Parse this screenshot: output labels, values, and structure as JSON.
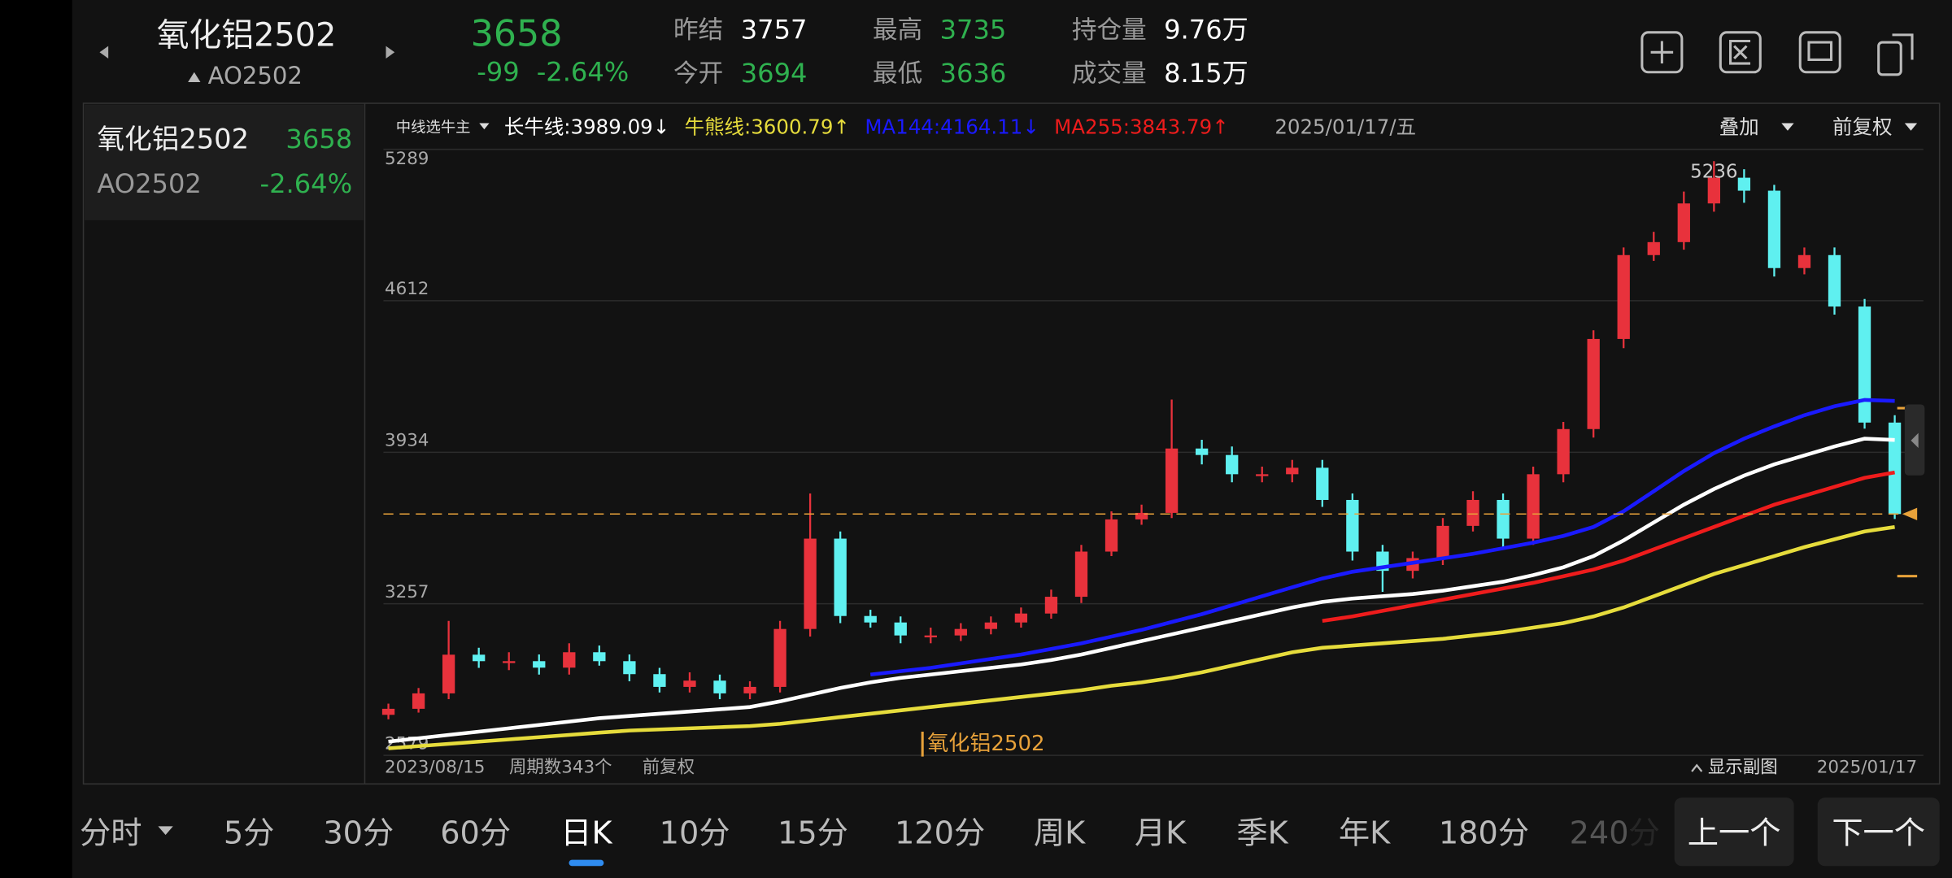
{
  "header": {
    "name": "氧化铝2502",
    "code": "AO2502",
    "price": "3658",
    "change": "-99",
    "change_pct": "-2.64%",
    "stats": [
      {
        "label": "昨结",
        "value": "3757",
        "color": "#ffffff"
      },
      {
        "label": "今开",
        "value": "3694",
        "color": "#2fb14f"
      },
      {
        "label": "最高",
        "value": "3735",
        "color": "#2fb14f"
      },
      {
        "label": "最低",
        "value": "3636",
        "color": "#2fb14f"
      },
      {
        "label": "持仓量",
        "value": "9.76万",
        "color": "#ffffff"
      },
      {
        "label": "成交量",
        "value": "8.15万",
        "color": "#ffffff"
      }
    ]
  },
  "watchlist": {
    "name": "氧化铝2502",
    "price": "3658",
    "code": "AO2502",
    "change_pct": "-2.64%"
  },
  "chart_data": {
    "type": "candlestick",
    "selector": "中线选牛主",
    "date_label": "2025/01/17/五",
    "overlay": "叠加",
    "adjust": "前复权",
    "ylim": [
      2579,
      5289
    ],
    "yticks": [
      5289,
      4612,
      3934,
      3257,
      2579
    ],
    "grid": true,
    "up_color": "#e8323c",
    "down_color": "#5ff0f0",
    "price_line": 3658,
    "price_line_color": "#e8a23a",
    "open": [
      2760,
      2787,
      2856,
      3029,
      3000,
      3000,
      2971,
      3040,
      3000,
      2942,
      2885,
      2913,
      2856,
      2885,
      3144,
      3548,
      3202,
      3173,
      3115,
      3115,
      3144,
      3173,
      3213,
      3288,
      3490,
      3634,
      3663,
      3951,
      3922,
      3836,
      3836,
      3865,
      3721,
      3490,
      3404,
      3461,
      3605,
      3721,
      3548,
      3836,
      4038,
      4441,
      4816,
      4874,
      5047,
      5162,
      5104,
      4758,
      4816,
      4586,
      4067
    ],
    "high": [
      2810,
      2880,
      3180,
      3060,
      3040,
      3030,
      3080,
      3070,
      3030,
      2970,
      2950,
      2940,
      2910,
      3180,
      3750,
      3580,
      3230,
      3200,
      3150,
      3170,
      3200,
      3240,
      3320,
      3520,
      3670,
      3700,
      4170,
      3990,
      3960,
      3870,
      3900,
      3900,
      3750,
      3520,
      3490,
      3640,
      3760,
      3750,
      3870,
      4070,
      4480,
      4850,
      4920,
      5100,
      5236,
      5200,
      5130,
      4850,
      4850,
      4620,
      4100
    ],
    "low": [
      2740,
      2770,
      2830,
      2970,
      2960,
      2940,
      2940,
      2980,
      2910,
      2860,
      2860,
      2830,
      2830,
      2860,
      3110,
      3170,
      3150,
      3080,
      3080,
      3090,
      3120,
      3150,
      3190,
      3260,
      3470,
      3610,
      3640,
      3880,
      3800,
      3800,
      3800,
      3690,
      3450,
      3310,
      3370,
      3430,
      3580,
      3500,
      3520,
      3800,
      4000,
      4400,
      4790,
      4840,
      5010,
      5050,
      4720,
      4730,
      4550,
      4040,
      3636
    ],
    "close": [
      2787,
      2856,
      3029,
      3000,
      3000,
      2971,
      3040,
      3000,
      2942,
      2885,
      2913,
      2856,
      2885,
      3144,
      3548,
      3202,
      3173,
      3115,
      3115,
      3144,
      3173,
      3213,
      3288,
      3490,
      3634,
      3663,
      3951,
      3922,
      3836,
      3836,
      3865,
      3721,
      3490,
      3404,
      3461,
      3605,
      3721,
      3548,
      3836,
      4038,
      4441,
      4816,
      4874,
      5047,
      5162,
      5104,
      4758,
      4816,
      4586,
      4067,
      3658
    ],
    "series": [
      {
        "label": "长牛线:3989.09↓",
        "color": "#ffffff",
        "values": [
          2640,
          2655,
          2670,
          2685,
          2700,
          2715,
          2730,
          2745,
          2755,
          2765,
          2775,
          2785,
          2795,
          2820,
          2850,
          2880,
          2905,
          2925,
          2940,
          2955,
          2970,
          2985,
          3005,
          3030,
          3060,
          3090,
          3120,
          3150,
          3180,
          3210,
          3240,
          3265,
          3280,
          3290,
          3300,
          3315,
          3335,
          3355,
          3385,
          3420,
          3470,
          3540,
          3620,
          3700,
          3770,
          3830,
          3880,
          3920,
          3960,
          3995,
          3989
        ]
      },
      {
        "label": "牛熊线:3600.79↑",
        "color": "#e6dc3c",
        "values": [
          2610,
          2620,
          2630,
          2640,
          2650,
          2660,
          2670,
          2680,
          2690,
          2695,
          2700,
          2705,
          2710,
          2720,
          2735,
          2750,
          2765,
          2780,
          2795,
          2810,
          2825,
          2840,
          2855,
          2870,
          2890,
          2905,
          2925,
          2950,
          2980,
          3010,
          3040,
          3060,
          3070,
          3080,
          3090,
          3100,
          3115,
          3130,
          3150,
          3170,
          3200,
          3240,
          3290,
          3340,
          3390,
          3430,
          3470,
          3510,
          3545,
          3580,
          3600
        ]
      },
      {
        "label": "MA144:4164.11↓",
        "color": "#1a1aff",
        "values": [
          null,
          null,
          null,
          null,
          null,
          null,
          null,
          null,
          null,
          null,
          null,
          null,
          null,
          null,
          null,
          null,
          2940,
          2955,
          2970,
          2990,
          3010,
          3030,
          3055,
          3080,
          3110,
          3140,
          3175,
          3210,
          3250,
          3290,
          3330,
          3370,
          3400,
          3420,
          3440,
          3460,
          3480,
          3505,
          3530,
          3560,
          3600,
          3670,
          3760,
          3850,
          3930,
          3995,
          4050,
          4100,
          4140,
          4168,
          4164
        ]
      },
      {
        "label": "MA255:3843.79↑",
        "color": "#ee1c1c",
        "values": [
          null,
          null,
          null,
          null,
          null,
          null,
          null,
          null,
          null,
          null,
          null,
          null,
          null,
          null,
          null,
          null,
          null,
          null,
          null,
          null,
          null,
          null,
          null,
          null,
          null,
          null,
          null,
          null,
          null,
          null,
          null,
          3180,
          3200,
          3225,
          3250,
          3275,
          3300,
          3325,
          3350,
          3380,
          3410,
          3450,
          3500,
          3550,
          3600,
          3650,
          3700,
          3740,
          3780,
          3820,
          3844
        ]
      }
    ],
    "legend_name": "氧化铝2502",
    "start_date": "2023/08/15",
    "period_count": "周期数343个",
    "end_date": "2025/01/17",
    "subchart_toggle": "显示副图"
  },
  "tabs": [
    "分时",
    "5分",
    "30分",
    "60分",
    "日K",
    "10分",
    "15分",
    "120分",
    "周K",
    "月K",
    "季K",
    "年K",
    "180分",
    "240分"
  ],
  "active_tab": 4,
  "buttons": [
    "上一个",
    "下一个"
  ]
}
